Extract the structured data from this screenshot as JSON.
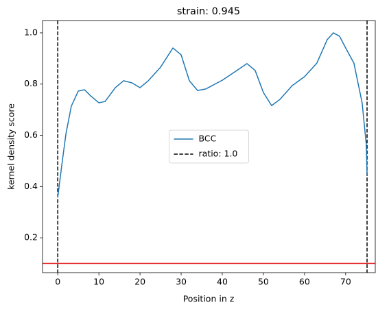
{
  "chart_data": {
    "type": "line",
    "title": "strain: 0.945",
    "xlabel": "Position in z",
    "ylabel": "kernel density score",
    "x": [
      0,
      1,
      2,
      3.3,
      5,
      6.5,
      8,
      10,
      11.5,
      14,
      16,
      18,
      20,
      22,
      25,
      28,
      30,
      32,
      34,
      36,
      40,
      43,
      46,
      48,
      50,
      52,
      54,
      57,
      60,
      63,
      65.5,
      67,
      68.5,
      70,
      72,
      74,
      75,
      75.2
    ],
    "series": [
      {
        "name": "BCC",
        "color": "#1f77b4",
        "values": [
          0.358,
          0.486,
          0.607,
          0.714,
          0.773,
          0.778,
          0.754,
          0.727,
          0.732,
          0.786,
          0.813,
          0.805,
          0.786,
          0.813,
          0.866,
          0.941,
          0.914,
          0.813,
          0.775,
          0.781,
          0.815,
          0.847,
          0.88,
          0.853,
          0.767,
          0.716,
          0.74,
          0.794,
          0.829,
          0.882,
          0.973,
          1.0,
          0.987,
          0.941,
          0.882,
          0.727,
          0.567,
          0.446
        ]
      }
    ],
    "vlines": {
      "name": "ratio: 1.0",
      "color": "#000000",
      "x": [
        0,
        75.2
      ]
    },
    "hline": {
      "y": 0.1,
      "color": "#e41a1c"
    },
    "xlim": [
      -3.7,
      77.2
    ],
    "xticks": [
      0,
      10,
      20,
      30,
      40,
      50,
      60,
      70
    ],
    "ylim": [
      0.064,
      1.048
    ],
    "yticks": [
      0.2,
      0.4,
      0.6,
      0.8,
      {
        "value": 1.0,
        "label": "1.0"
      }
    ],
    "legend": "center",
    "grid": false
  }
}
